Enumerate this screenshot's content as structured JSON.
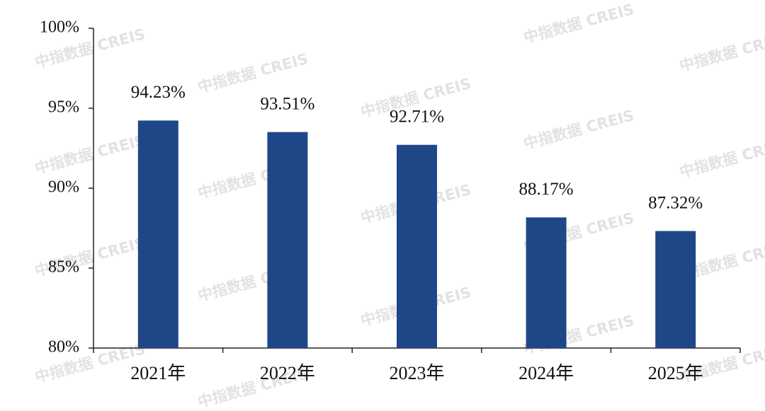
{
  "chart_data": {
    "type": "bar",
    "categories": [
      "2021年",
      "2022年",
      "2023年",
      "2024年",
      "2025年"
    ],
    "values": [
      94.23,
      93.51,
      92.71,
      88.17,
      87.32
    ],
    "value_labels": [
      "94.23%",
      "93.51%",
      "92.71%",
      "88.17%",
      "87.32%"
    ],
    "color": "#1f4788",
    "ylim": [
      80,
      100
    ],
    "yticks": [
      {
        "value": 80,
        "label": "80%"
      },
      {
        "value": 85,
        "label": "85%"
      },
      {
        "value": 90,
        "label": "90%"
      },
      {
        "value": 95,
        "label": "95%"
      },
      {
        "value": 100,
        "label": "100%"
      }
    ],
    "watermark": "中指数据 CREIS"
  }
}
